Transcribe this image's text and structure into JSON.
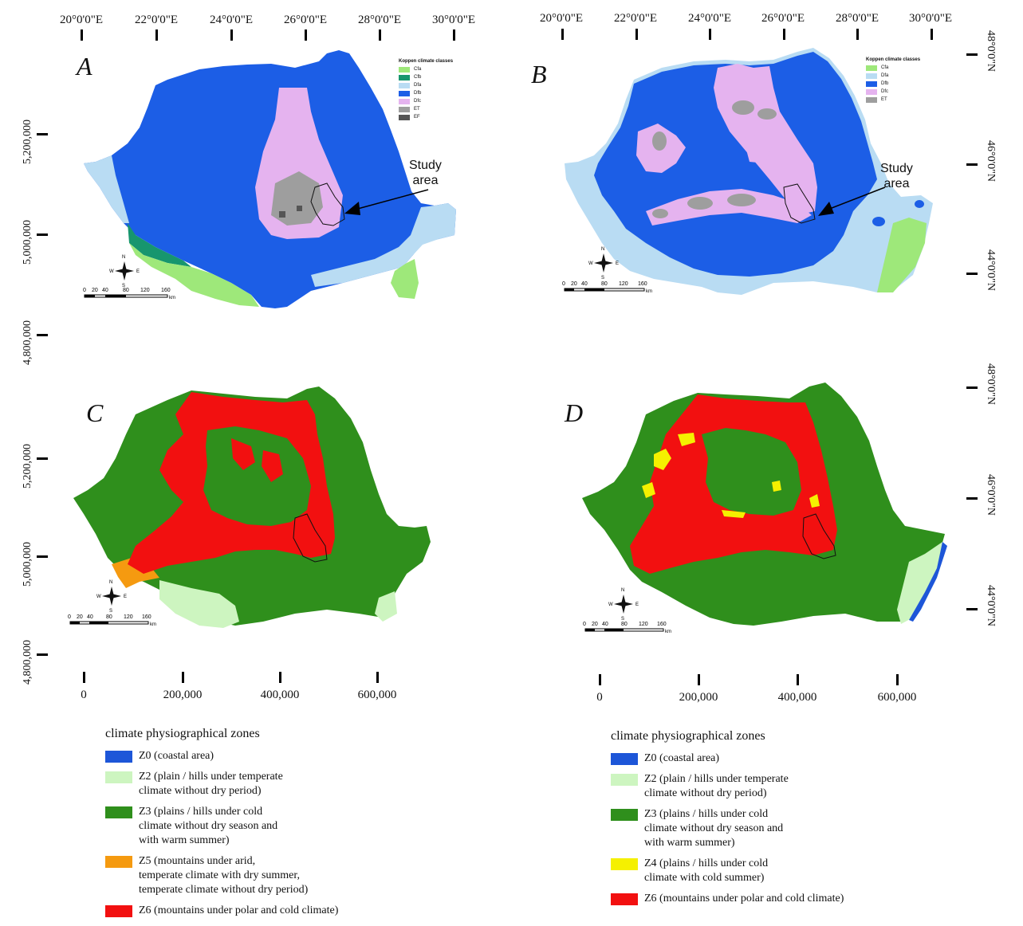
{
  "top_longitudes": [
    "20°0'0\"E",
    "22°0'0\"E",
    "24°0'0\"E",
    "26°0'0\"E",
    "28°0'0\"E",
    "30°0'0\"E"
  ],
  "right_latitudes": [
    "48°0'0\"N",
    "46°0'0\"N",
    "44°0'0\"N"
  ],
  "northing_labels": [
    "5,200,000",
    "5,000,000",
    "4,800,000"
  ],
  "easting_labels": [
    "0",
    "200,000",
    "400,000",
    "600,000"
  ],
  "panels": {
    "a": {
      "letter": "A"
    },
    "b": {
      "letter": "B"
    },
    "c": {
      "letter": "C"
    },
    "d": {
      "letter": "D"
    }
  },
  "koppen_legend_a": {
    "title": "Koppen climate classes",
    "items": [
      {
        "code": "Cfa",
        "color": "#9ee87a"
      },
      {
        "code": "Cfb",
        "color": "#17966e"
      },
      {
        "code": "Dfa",
        "color": "#b9dcf3"
      },
      {
        "code": "Dfb",
        "color": "#1c5ee6"
      },
      {
        "code": "Dfc",
        "color": "#e5b3ef"
      },
      {
        "code": "ET",
        "color": "#9e9e9e"
      },
      {
        "code": "EF",
        "color": "#555555"
      }
    ]
  },
  "koppen_legend_b": {
    "title": "Koppen climate classes",
    "items": [
      {
        "code": "Cfa",
        "color": "#9ee87a"
      },
      {
        "code": "Dfa",
        "color": "#b9dcf3"
      },
      {
        "code": "Dfb",
        "color": "#1c5ee6"
      },
      {
        "code": "Dfc",
        "color": "#e5b3ef"
      },
      {
        "code": "ET",
        "color": "#9e9e9e"
      }
    ]
  },
  "study_area": {
    "label_line1": "Study",
    "label_line2": "area"
  },
  "scalebar": {
    "ticks": [
      "0",
      "20",
      "40",
      "80",
      "120",
      "160"
    ],
    "unit": "km"
  },
  "compass": {
    "n": "N",
    "s": "S",
    "e": "E",
    "w": "W"
  },
  "zones_legend_left": {
    "title": "climate physiographical zones",
    "items": [
      {
        "text": "Z0 (coastal area)",
        "color": "#1d56d8"
      },
      {
        "text": "Z2 (plain / hills under temperate\n      climate without dry period)",
        "color": "#cdf5c0"
      },
      {
        "text": "Z3 (plains / hills under cold\n      climate without dry season and\n      with warm summer)",
        "color": "#2f8f1c"
      },
      {
        "text": "Z5 (mountains under arid,\n      temperate climate with dry summer,\n      temperate climate without dry period)",
        "color": "#f59a10"
      },
      {
        "text": "Z6 (mountains under polar and cold climate)",
        "color": "#f21010"
      }
    ]
  },
  "zones_legend_right": {
    "title": "climate physiographical zones",
    "items": [
      {
        "text": "Z0 (coastal area)",
        "color": "#1d56d8"
      },
      {
        "text": "Z2 (plain / hills under temperate\n      climate without dry period)",
        "color": "#cdf5c0"
      },
      {
        "text": "Z3 (plains / hills under cold\n      climate without dry season and\n      with warm summer)",
        "color": "#2f8f1c"
      },
      {
        "text": "Z4 (plains / hills under cold\n      climate with cold summer)",
        "color": "#f5f000"
      },
      {
        "text": "Z6 (mountains under polar and cold climate)",
        "color": "#f21010"
      }
    ]
  }
}
